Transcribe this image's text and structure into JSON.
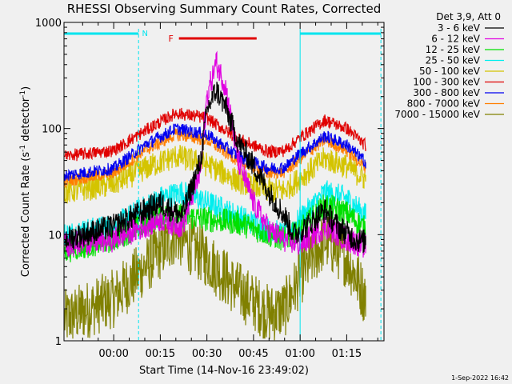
{
  "chart_data": {
    "type": "line",
    "title": "RHESSI Observing Summary Count Rates, Corrected",
    "xlabel": "Start Time (14-Nov-16 23:49:02)",
    "ylabel": "Corrected Count Rate (s⁻¹ detector⁻¹)",
    "ylabel_parts": {
      "main": "Corrected Count Rate (s",
      "sup1": "-1",
      "mid": " detector",
      "sup2": "-1",
      "end": ")"
    },
    "yscale": "log",
    "ylim": [
      1,
      1000
    ],
    "xlim_minutes": [
      -16,
      87
    ],
    "xticks": [
      {
        "m": 0,
        "label": "00:00"
      },
      {
        "m": 15,
        "label": "00:15"
      },
      {
        "m": 30,
        "label": "00:30"
      },
      {
        "m": 45,
        "label": "00:45"
      },
      {
        "m": 60,
        "label": "01:00"
      },
      {
        "m": 75,
        "label": "01:15"
      }
    ],
    "yticks": [
      {
        "v": 1,
        "label": "1"
      },
      {
        "v": 10,
        "label": "10"
      },
      {
        "v": 100,
        "label": "100"
      },
      {
        "v": 1000,
        "label": "1000"
      }
    ],
    "legend_header": "Det 3,9, Att 0",
    "legend_placement": "right",
    "annotations": {
      "night_label": "N",
      "flare_label": "F",
      "night_segments": [
        [
          -16,
          8
        ],
        [
          60,
          86
        ]
      ],
      "flare_segment": [
        21,
        46
      ],
      "night_color": "#00e5ee",
      "flare_color": "#e00000"
    },
    "footer": "1-Sep-2022 16:42",
    "series": [
      {
        "name": "3 - 6 keV",
        "color": "#000000",
        "points": [
          [
            -16,
            9
          ],
          [
            0,
            12
          ],
          [
            15,
            20
          ],
          [
            22,
            15
          ],
          [
            28,
            50
          ],
          [
            30,
            150
          ],
          [
            33,
            230
          ],
          [
            36,
            160
          ],
          [
            40,
            75
          ],
          [
            45,
            45
          ],
          [
            50,
            25
          ],
          [
            55,
            15
          ],
          [
            58,
            10
          ],
          [
            62,
            12
          ],
          [
            68,
            17
          ],
          [
            72,
            12
          ],
          [
            78,
            9
          ],
          [
            85,
            8
          ]
        ]
      },
      {
        "name": "6 - 12 keV",
        "color": "#e000e0",
        "points": [
          [
            -16,
            8
          ],
          [
            0,
            9
          ],
          [
            15,
            14
          ],
          [
            22,
            12
          ],
          [
            28,
            40
          ],
          [
            30,
            200
          ],
          [
            33,
            420
          ],
          [
            36,
            250
          ],
          [
            40,
            50
          ],
          [
            45,
            20
          ],
          [
            50,
            11
          ],
          [
            55,
            9
          ],
          [
            60,
            8
          ],
          [
            68,
            12
          ],
          [
            75,
            9
          ],
          [
            85,
            7
          ]
        ]
      },
      {
        "name": "12 - 25 keV",
        "color": "#00e000",
        "points": [
          [
            -16,
            7
          ],
          [
            0,
            9
          ],
          [
            15,
            15
          ],
          [
            22,
            15
          ],
          [
            30,
            14
          ],
          [
            40,
            13
          ],
          [
            50,
            10
          ],
          [
            55,
            9
          ],
          [
            60,
            11
          ],
          [
            68,
            19
          ],
          [
            75,
            16
          ],
          [
            85,
            9
          ]
        ]
      },
      {
        "name": "25 - 50 keV",
        "color": "#00eeee",
        "points": [
          [
            -16,
            10
          ],
          [
            0,
            12
          ],
          [
            15,
            22
          ],
          [
            22,
            25
          ],
          [
            30,
            20
          ],
          [
            40,
            15
          ],
          [
            50,
            11
          ],
          [
            55,
            10
          ],
          [
            60,
            14
          ],
          [
            68,
            25
          ],
          [
            75,
            22
          ],
          [
            85,
            12
          ]
        ]
      },
      {
        "name": "50 - 100 keV",
        "color": "#d4c400",
        "points": [
          [
            -16,
            25
          ],
          [
            0,
            30
          ],
          [
            10,
            42
          ],
          [
            20,
            55
          ],
          [
            30,
            46
          ],
          [
            40,
            32
          ],
          [
            50,
            26
          ],
          [
            55,
            26
          ],
          [
            60,
            34
          ],
          [
            68,
            52
          ],
          [
            75,
            44
          ],
          [
            85,
            28
          ]
        ]
      },
      {
        "name": "100 - 300 keV",
        "color": "#e00000",
        "points": [
          [
            -16,
            55
          ],
          [
            0,
            62
          ],
          [
            10,
            95
          ],
          [
            20,
            140
          ],
          [
            30,
            125
          ],
          [
            40,
            80
          ],
          [
            50,
            60
          ],
          [
            55,
            62
          ],
          [
            60,
            82
          ],
          [
            68,
            120
          ],
          [
            75,
            100
          ],
          [
            85,
            55
          ]
        ]
      },
      {
        "name": "300 - 800 keV",
        "color": "#0000f0",
        "points": [
          [
            -16,
            36
          ],
          [
            0,
            42
          ],
          [
            10,
            70
          ],
          [
            20,
            100
          ],
          [
            30,
            88
          ],
          [
            40,
            55
          ],
          [
            50,
            42
          ],
          [
            55,
            43
          ],
          [
            60,
            58
          ],
          [
            68,
            85
          ],
          [
            75,
            70
          ],
          [
            85,
            38
          ]
        ]
      },
      {
        "name": "800 - 7000 keV",
        "color": "#ff7f00",
        "points": [
          [
            -16,
            32
          ],
          [
            0,
            38
          ],
          [
            10,
            62
          ],
          [
            20,
            88
          ],
          [
            30,
            78
          ],
          [
            40,
            50
          ],
          [
            50,
            38
          ],
          [
            55,
            39
          ],
          [
            60,
            52
          ],
          [
            68,
            78
          ],
          [
            75,
            62
          ],
          [
            85,
            34
          ]
        ]
      },
      {
        "name": "7000 - 15000 keV",
        "color": "#808000",
        "points": [
          [
            -16,
            1.6
          ],
          [
            0,
            2.5
          ],
          [
            10,
            5
          ],
          [
            20,
            10
          ],
          [
            30,
            6
          ],
          [
            40,
            3
          ],
          [
            50,
            1.8
          ],
          [
            55,
            2
          ],
          [
            60,
            4
          ],
          [
            68,
            9
          ],
          [
            75,
            6
          ],
          [
            85,
            1.5
          ]
        ]
      }
    ]
  }
}
